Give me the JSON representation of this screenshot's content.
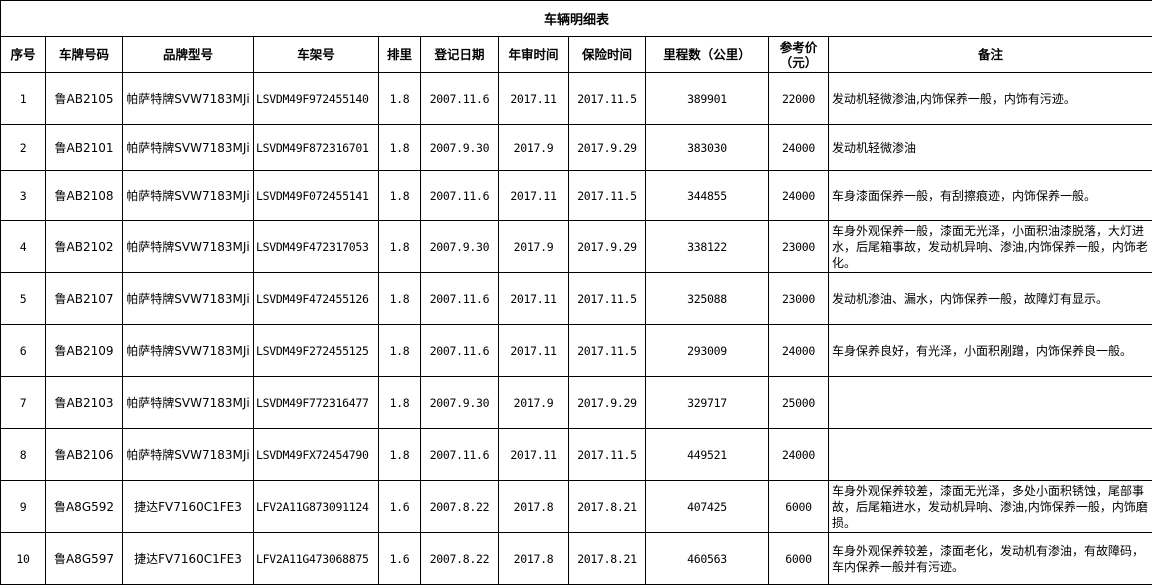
{
  "title": "车辆明细表",
  "headers": [
    "序号",
    "车牌号码",
    "品牌型号",
    "车架号",
    "排里",
    "登记日期",
    "年审时间",
    "保险时间",
    "里程数（公里）",
    "参考价（元）",
    "备注"
  ],
  "rows": [
    [
      "1",
      "鲁AB2105",
      "帕萨特牌SVW7183MJi",
      "LSVDM49F972455140",
      "1.8",
      "2007.11.6",
      "2017.11",
      "2017.11.5",
      "389901",
      "22000",
      "发动机轻微渗油,内饰保养一般，内饰有污迹。"
    ],
    [
      "2",
      "鲁AB2101",
      "帕萨特牌SVW7183MJi",
      "LSVDM49F872316701",
      "1.8",
      "2007.9.30",
      "2017.9",
      "2017.9.29",
      "383030",
      "24000",
      "发动机轻微渗油"
    ],
    [
      "3",
      "鲁AB2108",
      "帕萨特牌SVW7183MJi",
      "LSVDM49F072455141",
      "1.8",
      "2007.11.6",
      "2017.11",
      "2017.11.5",
      "344855",
      "24000",
      "车身漆面保养一般，有刮擦痕迹，内饰保养一般。"
    ],
    [
      "4",
      "鲁AB2102",
      "帕萨特牌SVW7183MJi",
      "LSVDM49F472317053",
      "1.8",
      "2007.9.30",
      "2017.9",
      "2017.9.29",
      "338122",
      "23000",
      "车身外观保养一般，漆面无光泽，小面积油漆脱落，大灯进水，后尾箱事故，发动机异响、渗油,内饰保养一般，内饰老化。"
    ],
    [
      "5",
      "鲁AB2107",
      "帕萨特牌SVW7183MJi",
      "LSVDM49F472455126",
      "1.8",
      "2007.11.6",
      "2017.11",
      "2017.11.5",
      "325088",
      "23000",
      "发动机渗油、漏水，内饰保养一般，故障灯有显示。"
    ],
    [
      "6",
      "鲁AB2109",
      "帕萨特牌SVW7183MJi",
      "LSVDM49F272455125",
      "1.8",
      "2007.11.6",
      "2017.11",
      "2017.11.5",
      "293009",
      "24000",
      "车身保养良好，有光泽，小面积剐蹭，内饰保养良一般。"
    ],
    [
      "7",
      "鲁AB2103",
      "帕萨特牌SVW7183MJi",
      "LSVDM49F772316477",
      "1.8",
      "2007.9.30",
      "2017.9",
      "2017.9.29",
      "329717",
      "25000",
      ""
    ],
    [
      "8",
      "鲁AB2106",
      "帕萨特牌SVW7183MJi",
      "LSVDM49FX72454790",
      "1.8",
      "2007.11.6",
      "2017.11",
      "2017.11.5",
      "449521",
      "24000",
      ""
    ],
    [
      "9",
      "鲁A8G592",
      "捷达FV7160C1FE3",
      "LFV2A11G873091124",
      "1.6",
      "2007.8.22",
      "2017.8",
      "2017.8.21",
      "407425",
      "6000",
      "车身外观保养较差，漆面无光泽，多处小面积锈蚀，尾部事故，后尾箱进水，发动机异响、渗油,内饰保养一般，内饰磨损。"
    ],
    [
      "10",
      "鲁A8G597",
      "捷达FV7160C1FE3",
      "LFV2A11G473068875",
      "1.6",
      "2007.8.22",
      "2017.8",
      "2017.8.21",
      "460563",
      "6000",
      "车身外观保养较差，漆面老化，发动机有渗油，有故障码，车内保养一般并有污迹。"
    ]
  ]
}
